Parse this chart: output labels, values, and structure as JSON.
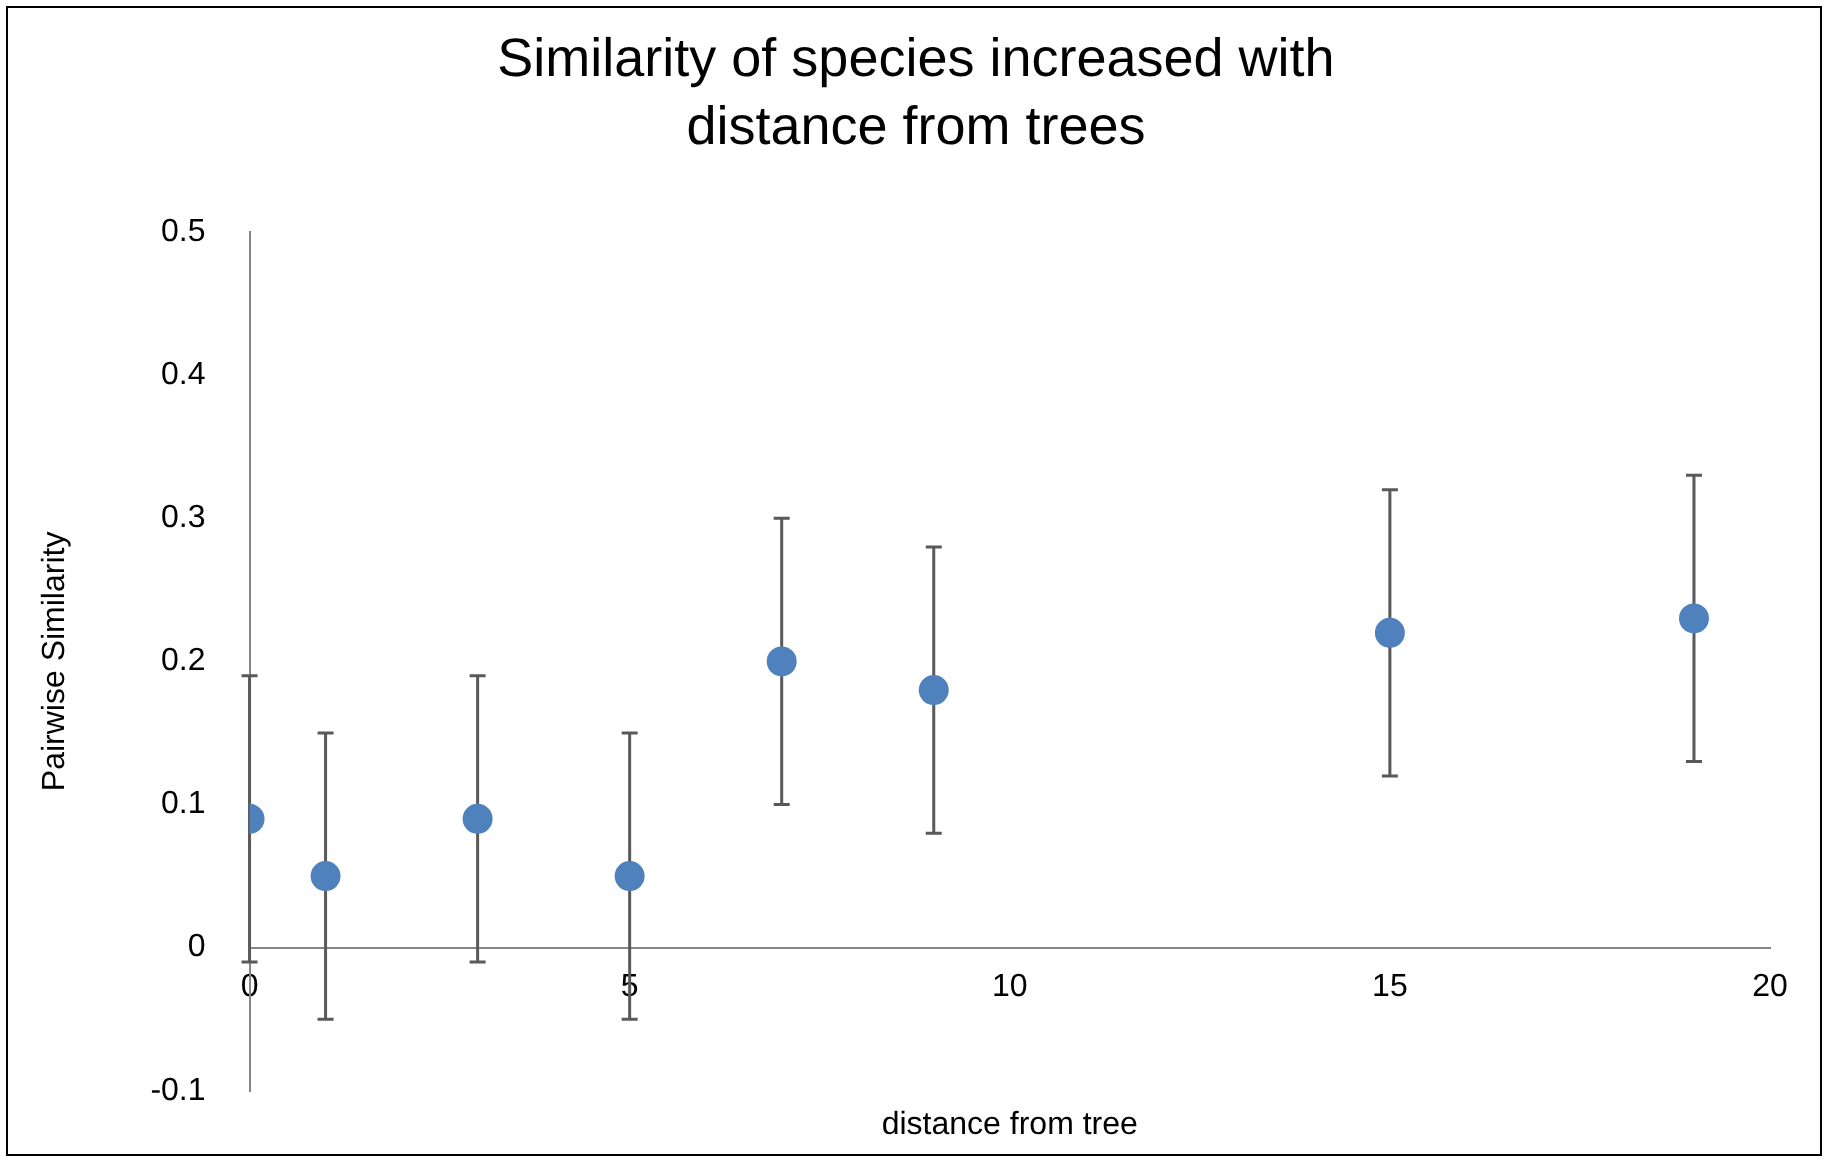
{
  "chart_data": {
    "type": "scatter",
    "title": "Similarity of species increased with distance from trees",
    "xlabel": "distance from tree",
    "ylabel": "Pairwise Similarity",
    "x": [
      0,
      1,
      3,
      5,
      7,
      9,
      15,
      19
    ],
    "series": [
      {
        "color": "#4f81bd",
        "values": [
          0.09,
          0.05,
          0.09,
          0.05,
          0.2,
          0.18,
          0.22,
          0.23
        ],
        "errors": [
          0.1,
          0.1,
          0.1,
          0.1,
          0.1,
          0.1,
          0.1,
          0.1
        ]
      }
    ],
    "xlim": [
      0,
      20
    ],
    "xticks": [
      0,
      5,
      10,
      15,
      20
    ],
    "ylim": [
      -0.1,
      0.5
    ],
    "yticks": [
      -0.1,
      0,
      0.1,
      0.2,
      0.3,
      0.4,
      0.5
    ],
    "grid": false,
    "legend": false,
    "marker": "circle"
  }
}
